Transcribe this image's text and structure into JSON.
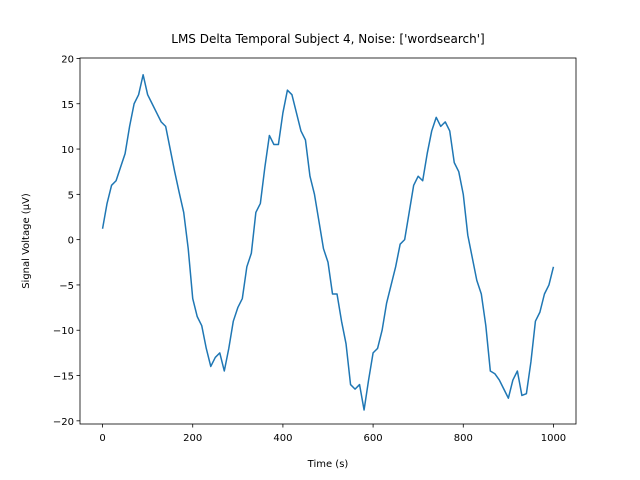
{
  "chart_data": {
    "type": "line",
    "title": "LMS Delta Temporal Subject 4, Noise: ['wordsearch']",
    "x_label": "Time (s)",
    "y_label": "Signal Voltage (μV)",
    "x": [
      0,
      10,
      20,
      30,
      40,
      50,
      60,
      70,
      80,
      90,
      100,
      110,
      120,
      130,
      140,
      150,
      160,
      170,
      180,
      190,
      200,
      210,
      220,
      230,
      240,
      250,
      260,
      270,
      280,
      290,
      300,
      310,
      320,
      330,
      340,
      350,
      360,
      370,
      380,
      390,
      400,
      410,
      420,
      430,
      440,
      450,
      460,
      470,
      480,
      490,
      500,
      510,
      520,
      530,
      540,
      550,
      560,
      570,
      580,
      590,
      600,
      610,
      620,
      630,
      640,
      650,
      660,
      670,
      680,
      690,
      700,
      710,
      720,
      730,
      740,
      750,
      760,
      770,
      780,
      790,
      800,
      810,
      820,
      830,
      840,
      850,
      860,
      870,
      880,
      890,
      900,
      910,
      920,
      930,
      940,
      950,
      960,
      970,
      980,
      990,
      1000
    ],
    "series": [
      {
        "color": "#1f77b4",
        "values": [
          1.2,
          4,
          6,
          6.5,
          8,
          9.5,
          12.5,
          15,
          16,
          18.2,
          16,
          15,
          14,
          13,
          12.5,
          10,
          7.5,
          5.2,
          3,
          -1,
          -6.5,
          -8.5,
          -9.5,
          -12,
          -14,
          -13,
          -12.5,
          -14.5,
          -12,
          -9,
          -7.5,
          -6.5,
          -3,
          -1.5,
          3,
          4,
          8,
          11.5,
          10.5,
          10.5,
          14,
          16.5,
          16,
          14,
          12,
          11,
          7,
          5,
          2,
          -1,
          -2.5,
          -6,
          -6,
          -9,
          -11.5,
          -16,
          -16.5,
          -16,
          -18.8,
          -15.5,
          -12.5,
          -12,
          -10,
          -7,
          -5,
          -3,
          -0.5,
          0,
          3,
          6,
          7,
          6.5,
          9.5,
          12,
          13.5,
          12.5,
          13,
          12,
          8.5,
          7.5,
          5,
          0.5,
          -2,
          -4.5,
          -6,
          -9.5,
          -14.5,
          -14.8,
          -15.5,
          -16.5,
          -17.5,
          -15.5,
          -14.5,
          -17.2,
          -17,
          -13.5,
          -9,
          -8,
          -6,
          -5,
          -3
        ]
      }
    ],
    "xlim": [
      -50,
      1050
    ],
    "ylim": [
      -20.35,
      20.05
    ],
    "xticks": [
      0,
      200,
      400,
      600,
      800,
      1000
    ],
    "yticks": [
      {
        "value": -20,
        "label": "−20"
      },
      {
        "value": -15,
        "label": "−15"
      },
      {
        "value": -10,
        "label": "−10"
      },
      {
        "value": -5,
        "label": "−5"
      },
      0,
      5,
      10,
      15,
      20
    ]
  }
}
